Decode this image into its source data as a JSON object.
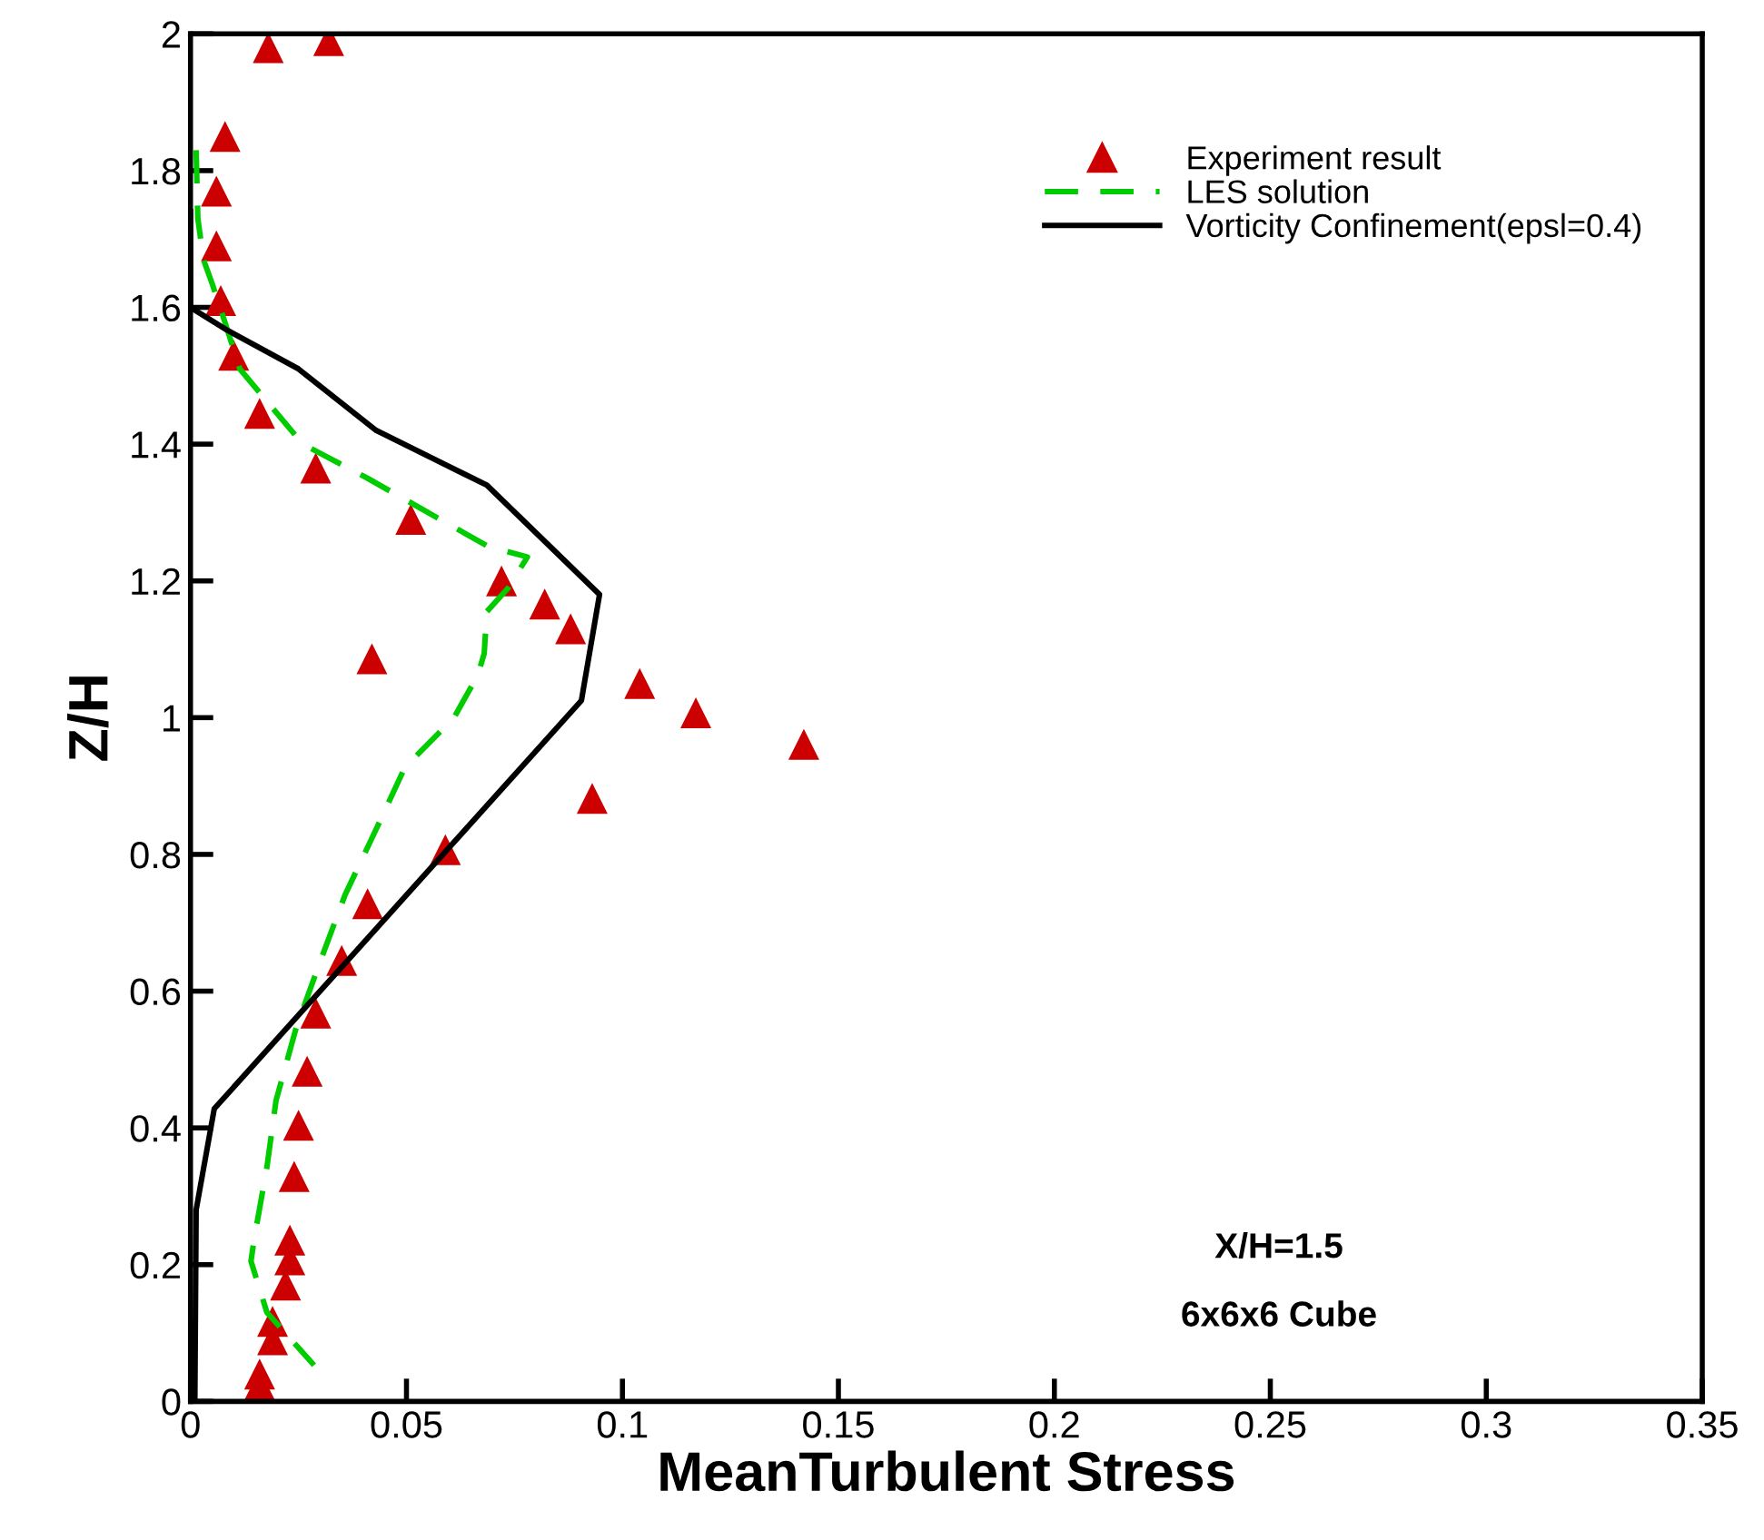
{
  "chart_data": {
    "type": "line",
    "xlabel": "MeanTurbulent Stress",
    "ylabel": "Z/H",
    "xlim": [
      0,
      0.35
    ],
    "ylim": [
      0,
      2
    ],
    "xticks": [
      0,
      0.05,
      0.1,
      0.15,
      0.2,
      0.25,
      0.3,
      0.35
    ],
    "yticks": [
      0,
      0.2,
      0.4,
      0.6,
      0.8,
      1,
      1.2,
      1.4,
      1.6,
      1.8,
      2
    ],
    "grid": false,
    "legend": "top right",
    "annotations": [
      "X/H=1.5",
      "6x6x6 Cube"
    ],
    "series": [
      {
        "name": "Experiment result",
        "type": "scatter",
        "marker": "triangle",
        "color": "#cc0000",
        "x": [
          0.032,
          0.018,
          0.008,
          0.006,
          0.006,
          0.007,
          0.01,
          0.016,
          0.029,
          0.051,
          0.072,
          0.082,
          0.088,
          0.042,
          0.104,
          0.117,
          0.142,
          0.093,
          0.059,
          0.041,
          0.035,
          0.029,
          0.027,
          0.025,
          0.024,
          0.023,
          0.023,
          0.022,
          0.019,
          0.019,
          0.016,
          0.016
        ],
        "values": [
          1.99,
          1.98,
          1.85,
          1.77,
          1.69,
          1.61,
          1.53,
          1.445,
          1.365,
          1.29,
          1.2,
          1.166,
          1.13,
          1.086,
          1.05,
          1.007,
          0.961,
          0.882,
          0.807,
          0.728,
          0.645,
          0.568,
          0.483,
          0.404,
          0.329,
          0.236,
          0.207,
          0.17,
          0.117,
          0.09,
          0.04,
          0.024
        ]
      },
      {
        "name": "LES solution",
        "line_style": "dashed",
        "color": "#00cc00",
        "x": [
          0.0013,
          0.0017,
          0.003,
          0.005,
          0.0084,
          0.0114,
          0.026,
          0.041,
          0.069,
          0.078,
          0.0736,
          0.0686,
          0.068,
          0.0665,
          0.061,
          0.0496,
          0.043,
          0.0358,
          0.03,
          0.0244,
          0.0198,
          0.0177,
          0.0147,
          0.014,
          0.0177,
          0.0286
        ],
        "values": [
          1.83,
          1.73,
          1.67,
          1.635,
          1.57,
          1.51,
          1.4,
          1.35,
          1.25,
          1.235,
          1.19,
          1.155,
          1.094,
          1.062,
          1.0,
          0.927,
          0.837,
          0.741,
          0.643,
          0.545,
          0.44,
          0.343,
          0.236,
          0.205,
          0.13,
          0.053
        ]
      },
      {
        "name": "Vorticity Confinement(epsl=0.4)",
        "line_style": "solid",
        "color": "#000000",
        "x": [
          0,
          0,
          0.0084,
          0.025,
          0.043,
          0.0686,
          0.0947,
          0.0905,
          0.0055,
          0.0013,
          0.001
        ],
        "values": [
          1.74,
          1.6,
          1.567,
          1.51,
          1.42,
          1.34,
          1.18,
          1.025,
          0.428,
          0.28,
          0.0
        ]
      }
    ]
  }
}
